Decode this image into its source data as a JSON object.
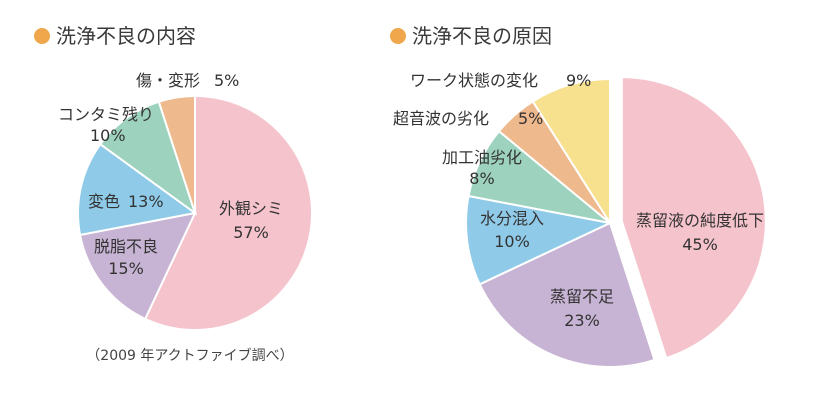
{
  "chart_data": [
    {
      "type": "pie",
      "title": "洗浄不良の内容",
      "title_marker_color": "#F0A64A",
      "note": "（2009 年アクトファイブ調べ）",
      "start": "12 o'clock, clockwise",
      "slices": [
        {
          "name": "外観シミ",
          "value": 57,
          "label": "57%",
          "color": "#F5C3CC"
        },
        {
          "name": "脱脂不良",
          "value": 15,
          "label": "15%",
          "color": "#C7B3D3"
        },
        {
          "name": "変色",
          "value": 13,
          "label": "13%",
          "color": "#8FCBE8"
        },
        {
          "name": "コンタミ残り",
          "value": 10,
          "label": "10%",
          "color": "#9DD3BE"
        },
        {
          "name": "傷・変形",
          "value": 5,
          "label": "5%",
          "color": "#EFB98E"
        }
      ]
    },
    {
      "type": "pie",
      "title": "洗浄不良の原因",
      "title_marker_color": "#F0A64A",
      "start": "12 o'clock, clockwise",
      "exploded_slice": "蒸留液の純度低下",
      "slices": [
        {
          "name": "蒸留液の純度低下",
          "value": 45,
          "label": "45%",
          "color": "#F5C3CC"
        },
        {
          "name": "蒸留不足",
          "value": 23,
          "label": "23%",
          "color": "#C7B3D3"
        },
        {
          "name": "水分混入",
          "value": 10,
          "label": "10%",
          "color": "#8FCBE8"
        },
        {
          "name": "加工油劣化",
          "value": 8,
          "label": "8%",
          "color": "#9DD3BE"
        },
        {
          "name": "超音波の劣化",
          "value": 5,
          "label": "5%",
          "color": "#EFB98E"
        },
        {
          "name": "ワーク状態の変化",
          "value": 9,
          "label": "9%",
          "color": "#F7E08E"
        }
      ]
    }
  ]
}
